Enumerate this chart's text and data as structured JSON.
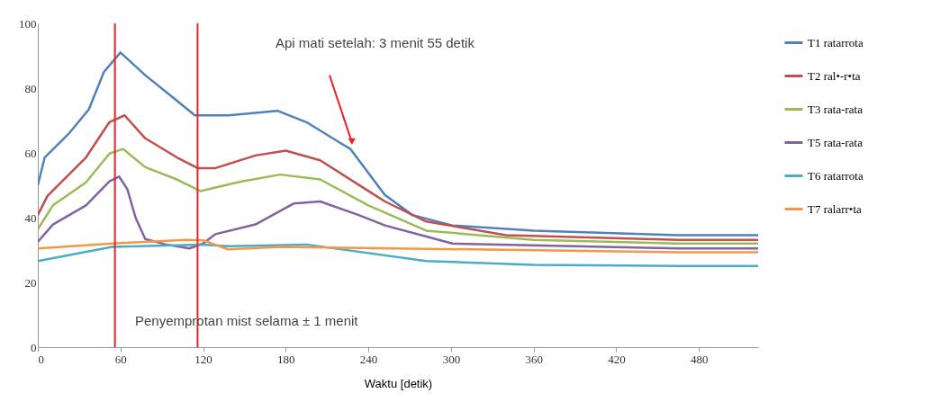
{
  "chart_data": {
    "type": "line",
    "xlabel": "Waktu [detik)",
    "xlim": [
      0,
      523
    ],
    "xticks": [
      0,
      60,
      120,
      180,
      240,
      300,
      360,
      420,
      480
    ],
    "ylim": [
      0,
      100
    ],
    "yticks": [
      0,
      20,
      40,
      60,
      80,
      100
    ],
    "grid": false,
    "legend": "right",
    "marker": "none",
    "line_style": "solid",
    "series": [
      {
        "name": "T1 ratarrota",
        "color": "#4f81bd",
        "x": [
          0,
          5,
          22,
          37,
          48,
          60,
          78,
          97,
          114,
          138,
          174,
          195,
          221,
          227,
          252,
          272,
          301,
          360,
          465,
          523
        ],
        "values": [
          50,
          58.6,
          65.7,
          73.4,
          85,
          91,
          84,
          77.5,
          71.6,
          71.6,
          73,
          69.5,
          62.7,
          61.2,
          47,
          40.8,
          37.6,
          36,
          34.6,
          34.6
        ]
      },
      {
        "name": "T2 ral•-r•ta",
        "color": "#c0504d",
        "x": [
          0,
          7,
          35,
          52,
          63,
          78,
          101,
          116,
          129,
          158,
          180,
          205,
          238,
          252,
          282,
          340,
          465,
          523
        ],
        "values": [
          40.8,
          46.7,
          58.6,
          69.5,
          71.6,
          64.5,
          58.6,
          55.3,
          55.3,
          59.2,
          60.7,
          57.7,
          48.8,
          45,
          38.8,
          34.6,
          33.1,
          33.1
        ]
      },
      {
        "name": "T3 rata-rata",
        "color": "#9bbb59",
        "x": [
          0,
          11,
          35,
          52,
          62,
          78,
          101,
          118,
          148,
          176,
          205,
          240,
          282,
          360,
          465,
          523
        ],
        "values": [
          36.4,
          43.8,
          50.9,
          59.8,
          61.2,
          55.6,
          51.8,
          48.2,
          51.2,
          53.3,
          51.8,
          43.8,
          36,
          33.1,
          32,
          32
        ]
      },
      {
        "name": "T5 rata-rata",
        "color": "#8064a2",
        "x": [
          0,
          11,
          35,
          52,
          59,
          65,
          71,
          78,
          93,
          110,
          120,
          129,
          158,
          186,
          205,
          233,
          252,
          301,
          465,
          523
        ],
        "values": [
          32.5,
          37.9,
          43.8,
          51.2,
          52.7,
          48.8,
          40,
          33.4,
          31.7,
          30.5,
          32,
          34.9,
          37.9,
          44.4,
          45,
          40.8,
          37.6,
          32,
          30.5,
          30.5
        ]
      },
      {
        "name": "T6 ratarrota",
        "color": "#4bacc6",
        "x": [
          0,
          54,
          120,
          138,
          195,
          282,
          360,
          465,
          523
        ],
        "values": [
          26.6,
          31,
          31.7,
          31.2,
          31.7,
          26.6,
          25.4,
          25.1,
          25.1
        ]
      },
      {
        "name": "T7 ralarr•ta",
        "color": "#f79646",
        "x": [
          0,
          54,
          107,
          120,
          138,
          176,
          465,
          523
        ],
        "values": [
          30.5,
          32,
          33.1,
          33,
          30.2,
          31,
          29.3,
          29.3
        ]
      }
    ],
    "ref_lines": [
      {
        "axis": "x",
        "value": 56,
        "color": "#e8242b"
      },
      {
        "axis": "x",
        "value": 116,
        "color": "#e8242b"
      }
    ],
    "annotations": [
      "Penyemprotan mist selama ± 1 menit",
      "Api mati setelah: 3 menit 55 detik"
    ]
  }
}
